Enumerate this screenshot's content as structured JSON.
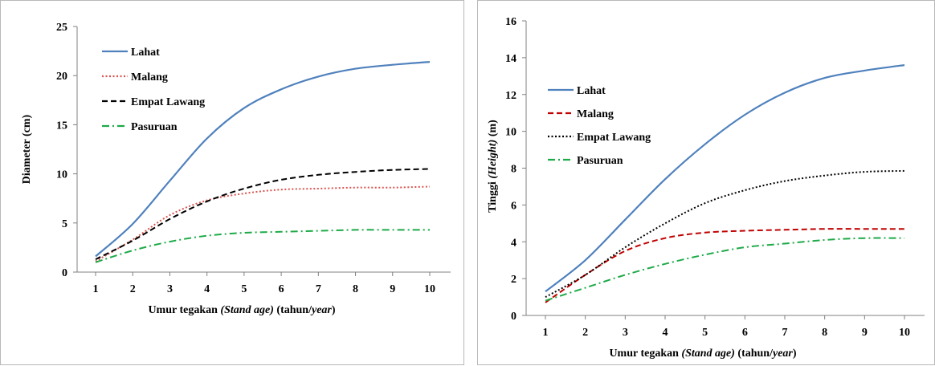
{
  "chart_data": [
    {
      "type": "line",
      "title": "",
      "xlabel_parts": [
        {
          "text": "Umur tegakan ",
          "italic": false
        },
        {
          "text": "(Stand age)",
          "italic": true
        },
        {
          "text": " (tahun/",
          "italic": false
        },
        {
          "text": "year",
          "italic": true
        },
        {
          "text": ")",
          "italic": false
        }
      ],
      "ylabel_parts": [
        {
          "text": "Diameter (cm)",
          "italic": false
        }
      ],
      "xlim": [
        1,
        10
      ],
      "ylim": [
        0,
        25
      ],
      "x": [
        1,
        2,
        3,
        4,
        5,
        6,
        7,
        8,
        9,
        10
      ],
      "xticks": [
        "1",
        "2",
        "3",
        "4",
        "5",
        "6",
        "7",
        "8",
        "9",
        "10"
      ],
      "yticks": [
        "0",
        "5",
        "10",
        "15",
        "20",
        "25"
      ],
      "ytick_values": [
        0,
        5,
        10,
        15,
        20,
        25
      ],
      "legend_position": "top-left",
      "grid": false,
      "series": [
        {
          "name": "Lahat",
          "color": "#4f81bd",
          "dash": "solid",
          "values": [
            1.6,
            4.9,
            9.3,
            13.6,
            16.7,
            18.6,
            19.9,
            20.7,
            21.1,
            21.4
          ]
        },
        {
          "name": "Malang",
          "color": "#d9534f",
          "dash": "dotted",
          "values": [
            1.1,
            3.3,
            5.8,
            7.3,
            8.0,
            8.4,
            8.5,
            8.6,
            8.6,
            8.7
          ]
        },
        {
          "name": "Empat Lawang",
          "color": "#000000",
          "dash": "dashed",
          "values": [
            1.3,
            3.2,
            5.4,
            7.2,
            8.5,
            9.4,
            9.9,
            10.2,
            10.4,
            10.5
          ]
        },
        {
          "name": "Pasuruan",
          "color": "#1eaa48",
          "dash": "dashdot",
          "values": [
            1.0,
            2.2,
            3.1,
            3.7,
            4.0,
            4.1,
            4.2,
            4.3,
            4.3,
            4.3
          ]
        }
      ]
    },
    {
      "type": "line",
      "title": "",
      "xlabel_parts": [
        {
          "text": "Umur tegakan ",
          "italic": false
        },
        {
          "text": "(Stand age)",
          "italic": true
        },
        {
          "text": " (tahun/",
          "italic": false
        },
        {
          "text": "year",
          "italic": true
        },
        {
          "text": ")",
          "italic": false
        }
      ],
      "ylabel_parts": [
        {
          "text": "Tinggi ",
          "italic": false
        },
        {
          "text": "(Height)",
          "italic": true
        },
        {
          "text": " (m)",
          "italic": false
        }
      ],
      "xlim": [
        1,
        10
      ],
      "ylim": [
        0,
        16
      ],
      "x": [
        1,
        2,
        3,
        4,
        5,
        6,
        7,
        8,
        9,
        10
      ],
      "xticks": [
        "1",
        "2",
        "3",
        "4",
        "5",
        "6",
        "7",
        "8",
        "9",
        "10"
      ],
      "yticks": [
        "0",
        "2",
        "4",
        "6",
        "8",
        "10",
        "12",
        "14",
        "16"
      ],
      "ytick_values": [
        0,
        2,
        4,
        6,
        8,
        10,
        12,
        14,
        16
      ],
      "legend_position": "top-left",
      "grid": false,
      "series": [
        {
          "name": "Lahat",
          "color": "#4f81bd",
          "dash": "solid",
          "values": [
            1.3,
            3.0,
            5.2,
            7.4,
            9.3,
            10.9,
            12.1,
            12.9,
            13.3,
            13.6
          ]
        },
        {
          "name": "Malang",
          "color": "#c00000",
          "dash": "dashed",
          "values": [
            0.7,
            2.2,
            3.5,
            4.2,
            4.5,
            4.6,
            4.65,
            4.7,
            4.7,
            4.7
          ]
        },
        {
          "name": "Empat Lawang",
          "color": "#000000",
          "dash": "dotted",
          "values": [
            1.0,
            2.2,
            3.7,
            5.0,
            6.1,
            6.8,
            7.3,
            7.6,
            7.8,
            7.85
          ]
        },
        {
          "name": "Pasuruan",
          "color": "#1eaa48",
          "dash": "dashdot",
          "values": [
            0.8,
            1.5,
            2.2,
            2.8,
            3.3,
            3.7,
            3.9,
            4.1,
            4.2,
            4.2
          ]
        }
      ]
    }
  ]
}
